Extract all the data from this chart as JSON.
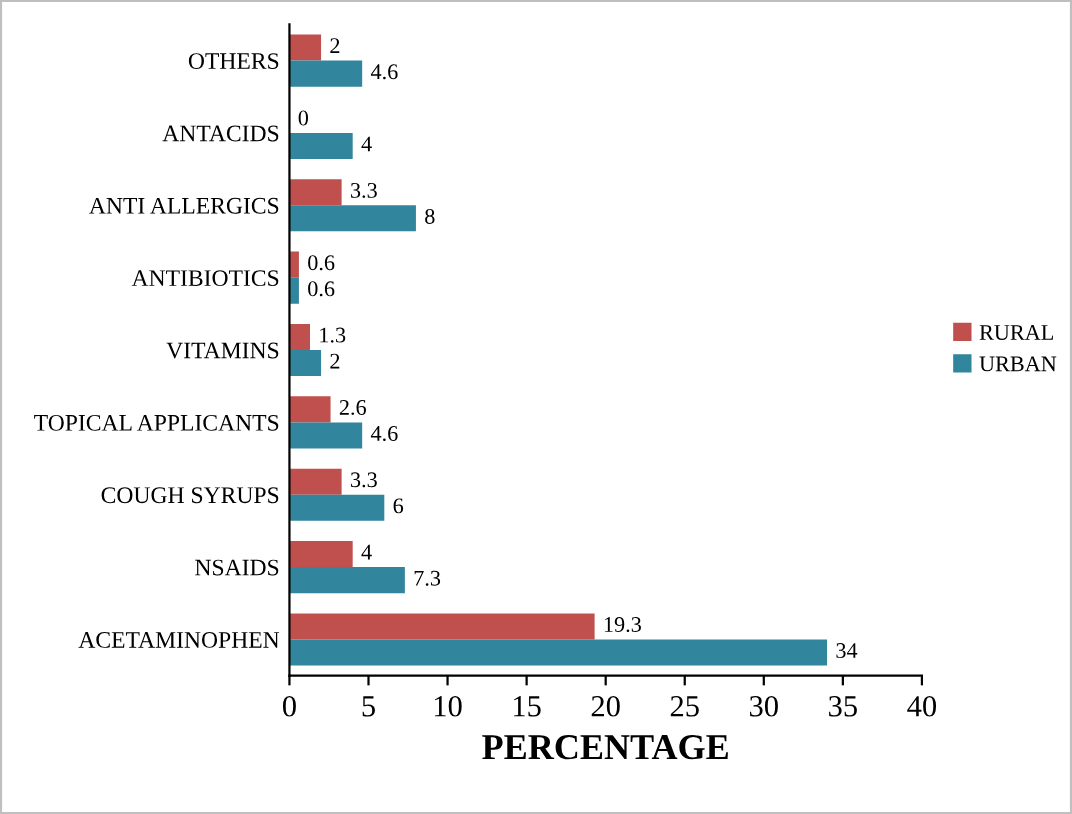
{
  "chart_data": {
    "type": "bar",
    "orientation": "horizontal",
    "xlabel": "PERCENTAGE",
    "categories": [
      "OTHERS",
      "ANTACIDS",
      "ANTI ALLERGICS",
      "ANTIBIOTICS",
      "VITAMINS",
      "TOPICAL APPLICANTS",
      "COUGH SYRUPS",
      "NSAIDS",
      "ACETAMINOPHEN"
    ],
    "series": [
      {
        "name": "RURAL",
        "color": "#c0504d",
        "values": [
          2,
          0,
          3.3,
          0.6,
          1.3,
          2.6,
          3.3,
          4,
          19.3
        ]
      },
      {
        "name": "URBAN",
        "color": "#31859c",
        "values": [
          4.6,
          4,
          8,
          0.6,
          2,
          4.6,
          6,
          7.3,
          34
        ]
      }
    ],
    "xlim": [
      0,
      40
    ],
    "xticks": [
      0,
      5,
      10,
      15,
      20,
      25,
      30,
      35,
      40
    ],
    "data_labels": true,
    "legend": "right",
    "grid": false
  }
}
